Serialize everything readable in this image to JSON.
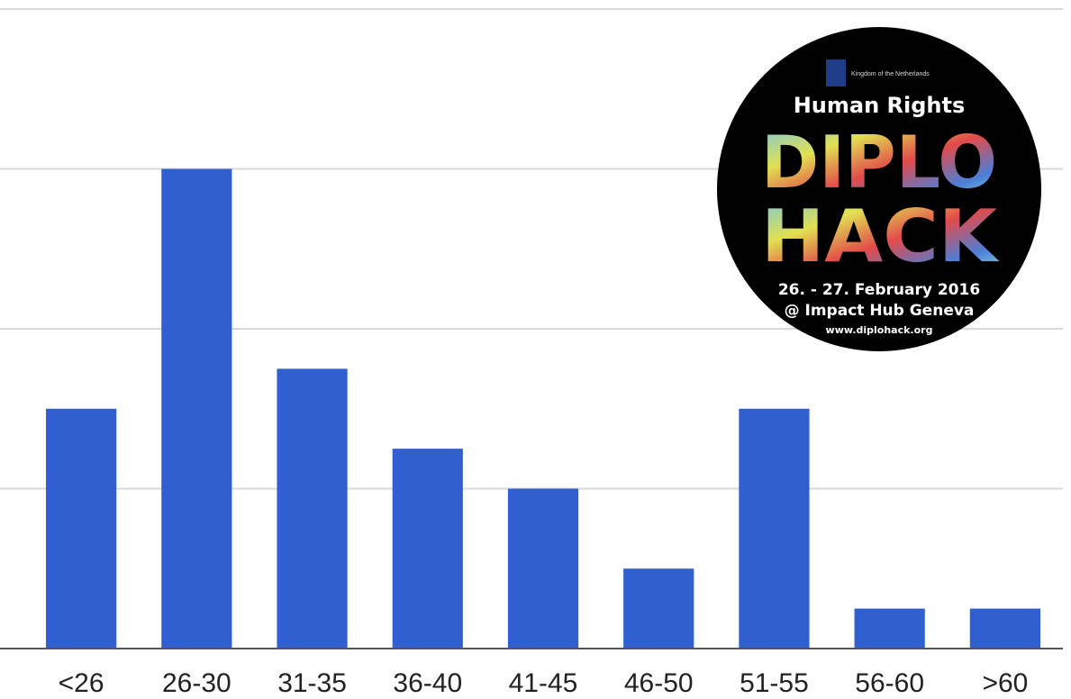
{
  "chart_data": {
    "type": "bar",
    "title": "",
    "xlabel": "",
    "ylabel": "",
    "categories": [
      "<26",
      "26-30",
      "31-35",
      "36-40",
      "41-45",
      "46-50",
      "51-55",
      "56-60",
      ">60"
    ],
    "values": [
      6,
      12,
      7,
      5,
      4,
      2,
      6,
      1,
      1
    ],
    "ylim": [
      0,
      16
    ],
    "grid": true,
    "legend": "none",
    "bar_color": "#3060d0",
    "gridline_color": "#d9d9d9",
    "axis_color": "#555555"
  },
  "logo": {
    "org": "Kingdom of the Netherlands",
    "headline": "Human Rights",
    "word1": "DIPLO",
    "word2": "HACK",
    "date": "26. - 27. February 2016",
    "venue": "@ Impact Hub Geneva",
    "url": "www.diplohack.org",
    "background": "#000000",
    "icon": "netherlands-crest-icon"
  }
}
